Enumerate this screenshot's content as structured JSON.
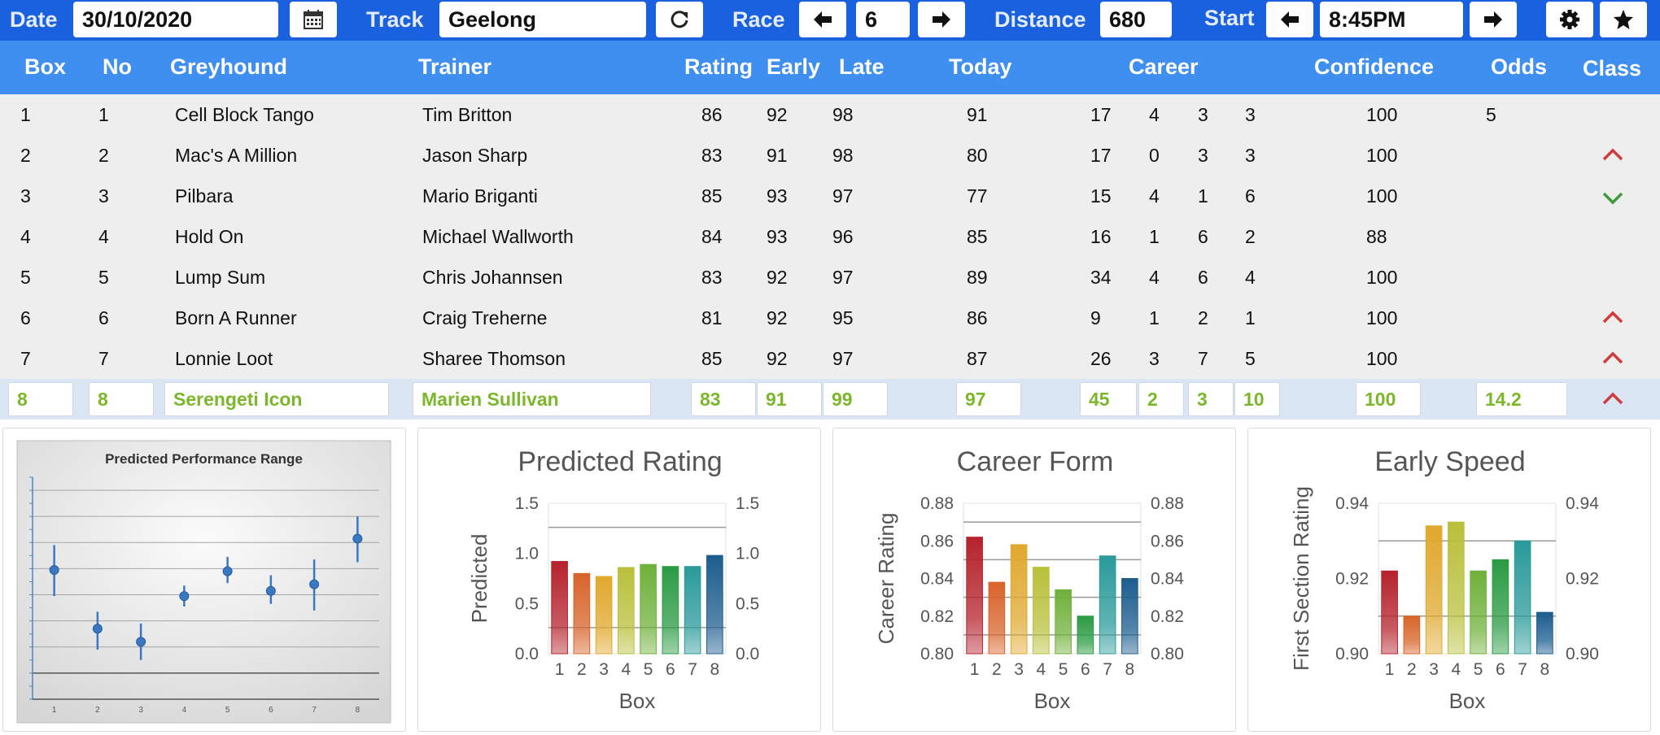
{
  "toolbar": {
    "date_label": "Date",
    "date_value": "30/10/2020",
    "track_label": "Track",
    "track_value": "Geelong",
    "race_label": "Race",
    "race_value": "6",
    "distance_label": "Distance",
    "distance_value": "680",
    "start_label": "Start",
    "start_value": "8:45PM",
    "icons": [
      "calendar-icon",
      "refresh-icon",
      "arrow-left-icon",
      "arrow-right-icon",
      "gear-icon",
      "star-icon"
    ]
  },
  "table": {
    "headers": {
      "box": "Box",
      "no": "No",
      "greyhound": "Greyhound",
      "trainer": "Trainer",
      "rating": "Rating",
      "early": "Early",
      "late": "Late",
      "today": "Today",
      "career": "Career",
      "confidence": "Confidence",
      "odds": "Odds",
      "class": "Class"
    },
    "rows": [
      {
        "box": "1",
        "no": "1",
        "greyhound": "Cell Block Tango",
        "trainer": "Tim Britton",
        "rating": "86",
        "early": "92",
        "late": "98",
        "today": "91",
        "starts": "17",
        "wins": "4",
        "seconds": "3",
        "thirds": "3",
        "confidence": "100",
        "odds": "5",
        "class_change": ""
      },
      {
        "box": "2",
        "no": "2",
        "greyhound": "Mac's A Million",
        "trainer": "Jason Sharp",
        "rating": "83",
        "early": "91",
        "late": "98",
        "today": "80",
        "starts": "17",
        "wins": "0",
        "seconds": "3",
        "thirds": "3",
        "confidence": "100",
        "odds": "",
        "class_change": "up"
      },
      {
        "box": "3",
        "no": "3",
        "greyhound": "Pilbara",
        "trainer": "Mario Briganti",
        "rating": "85",
        "early": "93",
        "late": "97",
        "today": "77",
        "starts": "15",
        "wins": "4",
        "seconds": "1",
        "thirds": "6",
        "confidence": "100",
        "odds": "",
        "class_change": "down"
      },
      {
        "box": "4",
        "no": "4",
        "greyhound": "Hold On",
        "trainer": "Michael Wallworth",
        "rating": "84",
        "early": "93",
        "late": "96",
        "today": "85",
        "starts": "16",
        "wins": "1",
        "seconds": "6",
        "thirds": "2",
        "confidence": "88",
        "odds": "",
        "class_change": ""
      },
      {
        "box": "5",
        "no": "5",
        "greyhound": "Lump Sum",
        "trainer": "Chris Johannsen",
        "rating": "83",
        "early": "92",
        "late": "97",
        "today": "89",
        "starts": "34",
        "wins": "4",
        "seconds": "6",
        "thirds": "4",
        "confidence": "100",
        "odds": "",
        "class_change": ""
      },
      {
        "box": "6",
        "no": "6",
        "greyhound": "Born A Runner",
        "trainer": "Craig Treherne",
        "rating": "81",
        "early": "92",
        "late": "95",
        "today": "86",
        "starts": "9",
        "wins": "1",
        "seconds": "2",
        "thirds": "1",
        "confidence": "100",
        "odds": "",
        "class_change": "up"
      },
      {
        "box": "7",
        "no": "7",
        "greyhound": "Lonnie Loot",
        "trainer": "Sharee Thomson",
        "rating": "85",
        "early": "92",
        "late": "97",
        "today": "87",
        "starts": "26",
        "wins": "3",
        "seconds": "7",
        "thirds": "5",
        "confidence": "100",
        "odds": "",
        "class_change": "up"
      },
      {
        "box": "8",
        "no": "8",
        "greyhound": "Serengeti Icon",
        "trainer": "Marien Sullivan",
        "rating": "83",
        "early": "91",
        "late": "99",
        "today": "97",
        "starts": "45",
        "wins": "2",
        "seconds": "3",
        "thirds": "10",
        "confidence": "100",
        "odds": "14.2",
        "class_change": "up",
        "selected": true
      }
    ]
  },
  "colors": {
    "toolbar": "#1a61df",
    "header": "#3f8ff0",
    "selected_text": "#7cb72b",
    "class_up": "#d23b3b",
    "class_down": "#3f9a3a",
    "bars": [
      "#b5222c",
      "#d8642a",
      "#e0a82d",
      "#b9c03a",
      "#6fb13a",
      "#2a9b43",
      "#2a9a9a",
      "#1c5d8e"
    ]
  },
  "chart_data": [
    {
      "type": "scatter",
      "title": "Predicted Performance Range",
      "categories": [
        "1",
        "2",
        "3",
        "4",
        "5",
        "6",
        "7",
        "8"
      ],
      "values": [
        0.79,
        0.34,
        0.24,
        0.59,
        0.78,
        0.63,
        0.68,
        1.03
      ],
      "error_low": [
        0.59,
        0.18,
        0.1,
        0.51,
        0.69,
        0.53,
        0.48,
        0.85
      ],
      "error_high": [
        0.98,
        0.47,
        0.38,
        0.67,
        0.89,
        0.75,
        0.87,
        1.2
      ],
      "ylim": [
        -0.2,
        1.5
      ],
      "grid": true,
      "legend": "none"
    },
    {
      "type": "bar",
      "title": "Predicted Rating",
      "categories": [
        "1",
        "2",
        "3",
        "4",
        "5",
        "6",
        "7",
        "8"
      ],
      "values": [
        0.92,
        0.8,
        0.77,
        0.86,
        0.89,
        0.87,
        0.87,
        0.98
      ],
      "xlabel": "Box",
      "ylabel": "Predicted",
      "ylim": [
        0.0,
        1.5
      ],
      "yticks": [
        "0.0",
        "0.5",
        "1.0",
        "1.5"
      ],
      "reference_lines": [
        1.26,
        0.26
      ],
      "grid": false,
      "legend": "none"
    },
    {
      "type": "bar",
      "title": "Career Form",
      "categories": [
        "1",
        "2",
        "3",
        "4",
        "5",
        "6",
        "7",
        "8"
      ],
      "values": [
        0.862,
        0.838,
        0.858,
        0.846,
        0.834,
        0.82,
        0.852,
        0.84
      ],
      "xlabel": "Box",
      "ylabel": "Career Rating",
      "ylim": [
        0.8,
        0.88
      ],
      "yticks": [
        "0.80",
        "0.82",
        "0.84",
        "0.86",
        "0.88"
      ],
      "reference_lines": [
        0.87,
        0.85,
        0.83,
        0.81
      ],
      "grid": false,
      "legend": "none"
    },
    {
      "type": "bar",
      "title": "Early Speed",
      "categories": [
        "1",
        "2",
        "3",
        "4",
        "5",
        "6",
        "7",
        "8"
      ],
      "values": [
        0.922,
        0.91,
        0.934,
        0.935,
        0.922,
        0.925,
        0.93,
        0.911
      ],
      "xlabel": "Box",
      "ylabel": "First Section Rating",
      "ylim": [
        0.9,
        0.94
      ],
      "yticks": [
        "0.90",
        "0.92",
        "0.94"
      ],
      "reference_lines": [
        0.93,
        0.91
      ],
      "grid": false,
      "legend": "none"
    }
  ]
}
